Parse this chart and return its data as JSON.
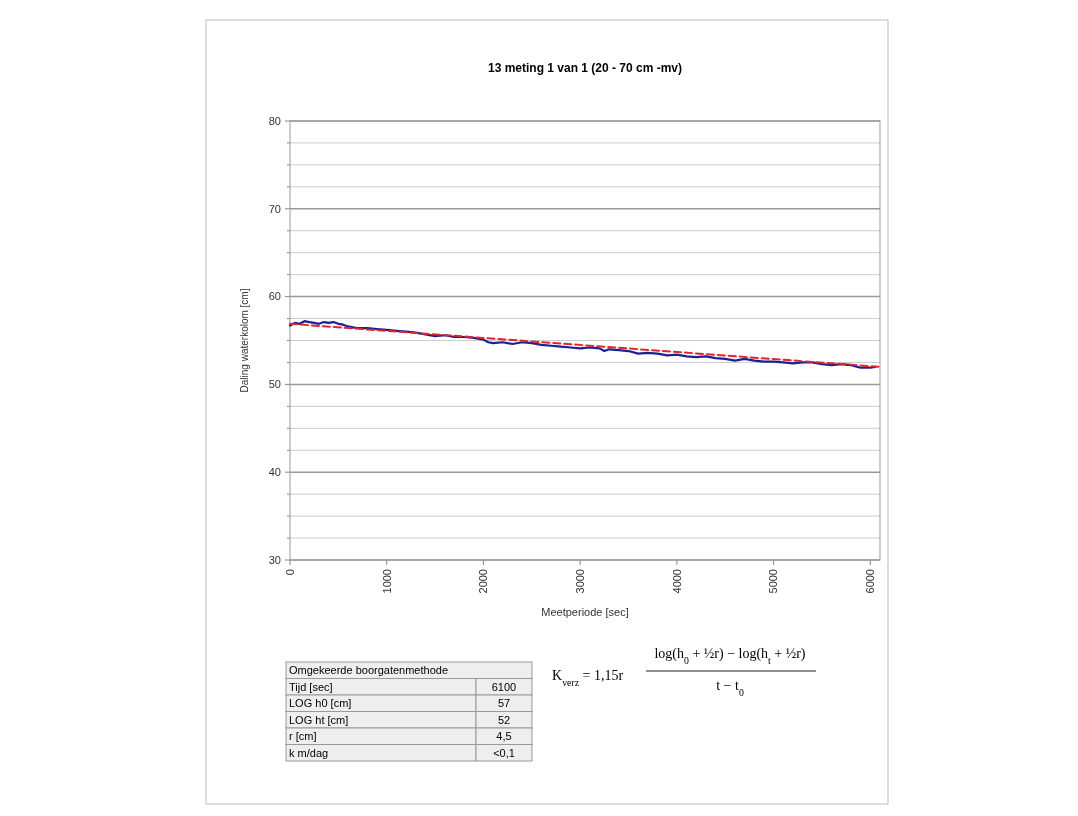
{
  "chart_data": {
    "type": "line",
    "title": "13 meting 1 van 1  (20 - 70 cm -mv)",
    "xlabel": "Meetperiode [sec]",
    "ylabel": "Daling waterkolom [cm]",
    "xlim": [
      0,
      6100
    ],
    "xticks": [
      0,
      1000,
      2000,
      3000,
      4000,
      5000,
      6000
    ],
    "ylim": [
      30,
      80
    ],
    "yticks": [
      30,
      {
        "value": 32.5,
        "label": null
      },
      {
        "value": 35,
        "label": null
      },
      {
        "value": 37.5,
        "label": null
      },
      40,
      {
        "value": 42.5,
        "label": null
      },
      {
        "value": 45,
        "label": null
      },
      {
        "value": 47.5,
        "label": null
      },
      50,
      {
        "value": 52.5,
        "label": null
      },
      {
        "value": 55,
        "label": null
      },
      {
        "value": 57.5,
        "label": null
      },
      60,
      {
        "value": 62.5,
        "label": null
      },
      {
        "value": 65,
        "label": null
      },
      {
        "value": 67.5,
        "label": null
      },
      70,
      {
        "value": 72.5,
        "label": null
      },
      {
        "value": 75,
        "label": null
      },
      {
        "value": 77.5,
        "label": null
      },
      80
    ],
    "grid": "y",
    "marker": "none",
    "series": [
      {
        "color": "#1f1f8f",
        "line_style": "solid",
        "x": [
          0,
          50,
          100,
          150,
          200,
          250,
          300,
          350,
          400,
          450,
          500,
          550,
          600,
          650,
          700,
          800,
          900,
          1000,
          1100,
          1200,
          1300,
          1400,
          1500,
          1600,
          1700,
          1800,
          1900,
          2000,
          2050,
          2100,
          2200,
          2300,
          2400,
          2500,
          2600,
          2700,
          2800,
          2900,
          3000,
          3100,
          3200,
          3250,
          3300,
          3400,
          3500,
          3600,
          3700,
          3800,
          3900,
          4000,
          4100,
          4200,
          4300,
          4400,
          4500,
          4600,
          4700,
          4800,
          4900,
          5000,
          5100,
          5200,
          5300,
          5400,
          5500,
          5600,
          5700,
          5800,
          5900,
          6000,
          6050
        ],
        "values": [
          56.7,
          57.0,
          56.9,
          57.2,
          57.1,
          57.0,
          56.9,
          57.1,
          57.0,
          57.1,
          56.9,
          56.8,
          56.6,
          56.5,
          56.4,
          56.4,
          56.3,
          56.2,
          56.1,
          56.0,
          55.9,
          55.7,
          55.5,
          55.6,
          55.4,
          55.4,
          55.3,
          55.1,
          54.8,
          54.7,
          54.8,
          54.6,
          54.8,
          54.7,
          54.5,
          54.4,
          54.3,
          54.2,
          54.1,
          54.2,
          54.1,
          53.8,
          54.0,
          53.9,
          53.8,
          53.5,
          53.6,
          53.5,
          53.3,
          53.4,
          53.2,
          53.1,
          53.2,
          53.0,
          52.9,
          52.7,
          52.9,
          52.7,
          52.6,
          52.6,
          52.5,
          52.4,
          52.5,
          52.5,
          52.3,
          52.2,
          52.3,
          52.2,
          51.9,
          51.9,
          52.0
        ]
      },
      {
        "color": "#e0242a",
        "line_style": "dashed",
        "x": [
          0,
          6100
        ],
        "values": [
          56.9,
          52.0
        ]
      }
    ],
    "annotations": [
      "Omgekeerde boorgatenmethode",
      "Tijd [sec]",
      "6100",
      "LOG h0 [cm]",
      "57",
      "LOG ht [cm]",
      "52",
      "r [cm]",
      "4,5",
      "k m/dag",
      "<0,1",
      "K$_{verz}$ = 1,15r",
      "log(h$_{0}$ + ½r) − log(h$_{t}$ + ½r)",
      "t − t$_{0}$"
    ]
  }
}
